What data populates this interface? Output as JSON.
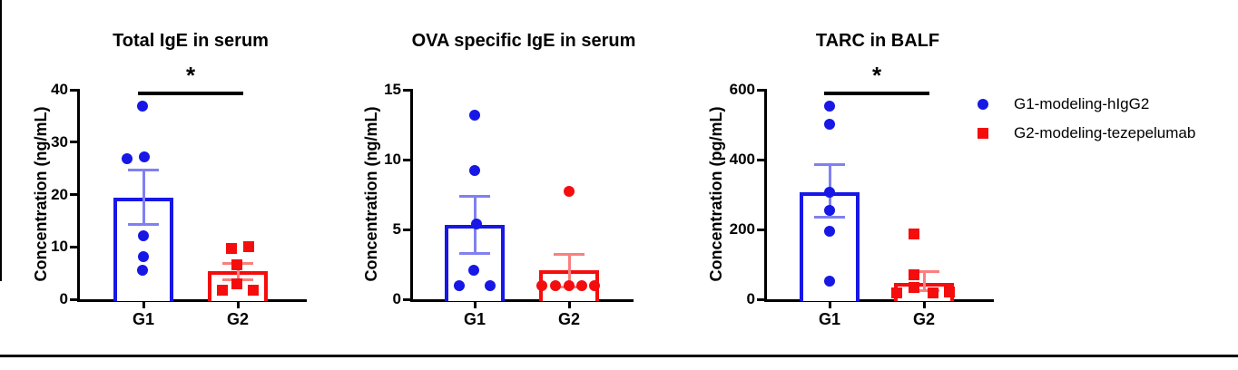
{
  "figure": {
    "colors": {
      "blue": "#1717E6",
      "blue_error": "#8080F0",
      "red": "#F50D0D",
      "red_error": "#F98080",
      "axis": "#000000"
    },
    "legend": {
      "items": [
        {
          "label": "G1-modeling-hIgG2",
          "marker": "circle",
          "color": "#1717E6"
        },
        {
          "label": "G2-modeling-tezepelumab",
          "marker": "square",
          "color": "#F50D0D"
        }
      ]
    }
  },
  "chart_data": [
    {
      "type": "bar",
      "title": "Total IgE in serum",
      "ylabel": "Concentration (ng/mL)",
      "ylim": [
        0,
        40
      ],
      "yticks": [
        0,
        10,
        20,
        30,
        40
      ],
      "categories": [
        "G1",
        "G2"
      ],
      "significance": {
        "label": "*",
        "between": [
          "G1",
          "G2"
        ]
      },
      "series": [
        {
          "name": "G1-modeling-hIgG2",
          "category": "G1",
          "marker": "circle",
          "color": "#1717E6",
          "error_color": "#8080F0",
          "mean": 19.4,
          "sem_low": 14.2,
          "sem_high": 24.6,
          "points": [
            36.8,
            26.8,
            27.2,
            12.1,
            8.1,
            5.6
          ],
          "jitter": [
            -1,
            -18,
            1,
            0,
            0,
            -1
          ]
        },
        {
          "name": "G2-modeling-tezepelumab",
          "category": "G2",
          "marker": "square",
          "color": "#F50D0D",
          "error_color": "#F98080",
          "mean": 5.3,
          "sem_low": 3.7,
          "sem_high": 6.9,
          "points": [
            9.7,
            10.0,
            6.6,
            2.9,
            1.7,
            1.7
          ],
          "jitter": [
            -7,
            12,
            -1,
            -1,
            -17,
            17
          ]
        }
      ]
    },
    {
      "type": "bar",
      "title": "OVA specific IgE in serum",
      "ylabel": "Concentration (ng/mL)",
      "ylim": [
        0,
        15
      ],
      "yticks": [
        0,
        5,
        10,
        15
      ],
      "categories": [
        "G1",
        "G2"
      ],
      "significance": null,
      "series": [
        {
          "name": "G1-modeling-hIgG2",
          "category": "G1",
          "marker": "circle",
          "color": "#1717E6",
          "error_color": "#8080F0",
          "mean": 5.3,
          "sem_low": 3.3,
          "sem_high": 7.4,
          "points": [
            13.2,
            9.2,
            5.4,
            2.1,
            1.0,
            1.0
          ],
          "jitter": [
            0,
            0,
            2,
            -1,
            -17,
            17
          ]
        },
        {
          "name": "G2-modeling-tezepelumab",
          "category": "G2",
          "marker": "circle",
          "color": "#F50D0D",
          "error_color": "#F98080",
          "mean": 2.05,
          "sem_low": 0.9,
          "sem_high": 3.2,
          "points": [
            7.7,
            1.0,
            1.0,
            1.0,
            1.0,
            1.0
          ],
          "jitter": [
            0,
            -30,
            -15,
            0,
            14,
            28
          ]
        }
      ]
    },
    {
      "type": "bar",
      "title": "TARC in BALF",
      "ylabel": "Concentration (pg/mL)",
      "ylim": [
        0,
        600
      ],
      "yticks": [
        0,
        200,
        400,
        600
      ],
      "categories": [
        "G1",
        "G2"
      ],
      "significance": {
        "label": "*",
        "between": [
          "G1",
          "G2"
        ]
      },
      "series": [
        {
          "name": "G1-modeling-hIgG2",
          "category": "G1",
          "marker": "circle",
          "color": "#1717E6",
          "error_color": "#8080F0",
          "mean": 306,
          "sem_low": 234,
          "sem_high": 385,
          "points": [
            552,
            502,
            307,
            254,
            194,
            52
          ],
          "jitter": [
            0,
            0,
            0,
            0,
            0,
            0
          ]
        },
        {
          "name": "G2-modeling-tezepelumab",
          "category": "G2",
          "marker": "square",
          "color": "#F50D0D",
          "error_color": "#F98080",
          "mean": 48,
          "sem_low": 24,
          "sem_high": 79,
          "points": [
            186,
            70,
            33,
            19,
            17,
            21
          ],
          "jitter": [
            -11,
            -11,
            -11,
            -30,
            10,
            28
          ]
        }
      ]
    }
  ]
}
